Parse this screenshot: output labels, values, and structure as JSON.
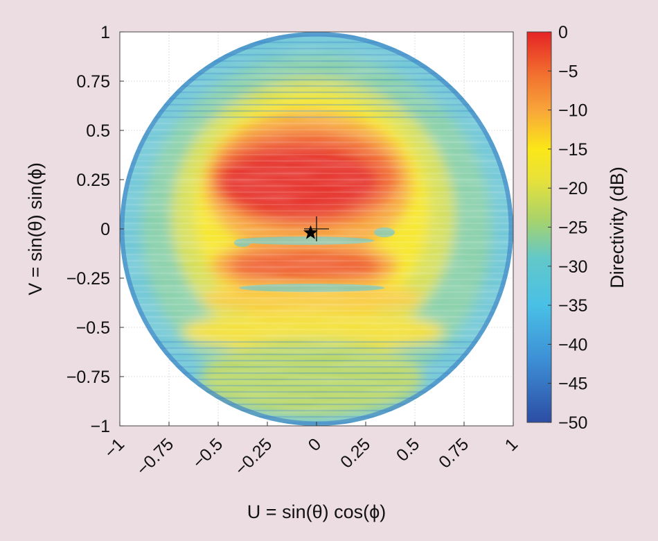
{
  "chart_data": {
    "type": "heatmap",
    "title": "",
    "xlabel": "U = sin(θ) cos(ϕ)",
    "ylabel": "V = sin(θ) sin(ϕ)",
    "xlim": [
      -1,
      1
    ],
    "ylim": [
      -1,
      1
    ],
    "x_ticks": [
      -1,
      -0.75,
      -0.5,
      -0.25,
      0,
      0.25,
      0.5,
      0.75,
      1
    ],
    "x_tick_labels": [
      "−1",
      "−0.75",
      "−0.5",
      "−0.25",
      "0",
      "0.25",
      "0.5",
      "0.75",
      "1"
    ],
    "y_ticks": [
      1,
      0.75,
      0.5,
      0.25,
      0,
      -0.25,
      -0.5,
      -0.75,
      -1
    ],
    "y_tick_labels": [
      "1",
      "0.75",
      "0.5",
      "0.25",
      "0",
      "−0.25",
      "−0.5",
      "−0.75",
      "−1"
    ],
    "grid": true,
    "region": "unit circle (U² + V² ≤ 1)",
    "colorbar": {
      "label": "Directivity (dB)",
      "range": [
        -50,
        0
      ],
      "ticks": [
        0,
        -5,
        -10,
        -15,
        -20,
        -25,
        -30,
        -35,
        -40,
        -45,
        -50
      ],
      "tick_labels": [
        "0",
        "−5",
        "−10",
        "−15",
        "−20",
        "−25",
        "−30",
        "−35",
        "−40",
        "−45",
        "−50"
      ],
      "colormap": "jet"
    },
    "markers": [
      {
        "type": "star",
        "u": -0.03,
        "v": -0.02
      },
      {
        "type": "plus",
        "u": 0.0,
        "v": 0.0
      }
    ],
    "features": {
      "main_lobe_db": 0,
      "main_lobe_region": {
        "u": [
          -0.3,
          0.35
        ],
        "v": [
          0.0,
          0.3
        ]
      },
      "secondary_lobe_region": {
        "u": [
          -0.35,
          0.35
        ],
        "v": [
          -0.28,
          -0.1
        ]
      },
      "edge_level_db": -35
    }
  }
}
